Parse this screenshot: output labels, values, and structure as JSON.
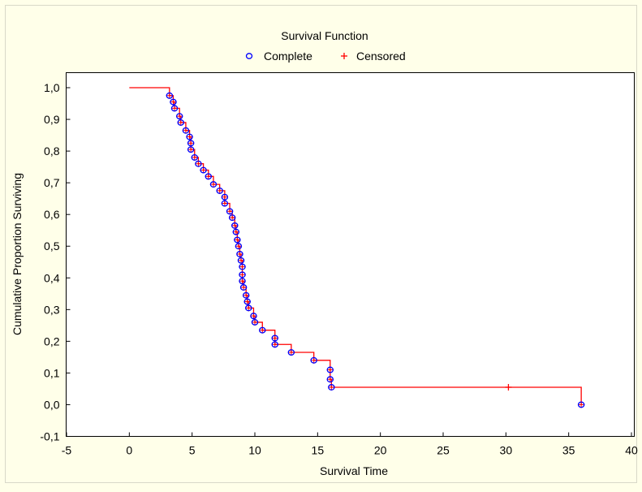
{
  "chart_data": {
    "type": "line",
    "title": "Survival Function",
    "xlabel": "Survival Time",
    "ylabel": "Cumulative Proportion Surviving",
    "xlim": [
      -5,
      40
    ],
    "ylim": [
      -0.1,
      1.05
    ],
    "x_ticks": [
      "-5",
      "0",
      "5",
      "10",
      "15",
      "20",
      "25",
      "30",
      "35",
      "40"
    ],
    "y_ticks": [
      "-0,1",
      "0,0",
      "0,1",
      "0,2",
      "0,3",
      "0,4",
      "0,5",
      "0,6",
      "0,7",
      "0,8",
      "0,9",
      "1,0"
    ],
    "grid": false,
    "legend_position": "top",
    "series": [
      {
        "name": "Complete",
        "marker": "circle",
        "color": "#0000ff",
        "points": [
          [
            3.2,
            0.975
          ],
          [
            3.5,
            0.955
          ],
          [
            3.6,
            0.935
          ],
          [
            4.0,
            0.91
          ],
          [
            4.1,
            0.89
          ],
          [
            4.5,
            0.865
          ],
          [
            4.8,
            0.845
          ],
          [
            4.9,
            0.825
          ],
          [
            4.9,
            0.805
          ],
          [
            5.2,
            0.78
          ],
          [
            5.5,
            0.76
          ],
          [
            5.9,
            0.74
          ],
          [
            6.3,
            0.72
          ],
          [
            6.7,
            0.695
          ],
          [
            7.2,
            0.675
          ],
          [
            7.6,
            0.655
          ],
          [
            7.6,
            0.635
          ],
          [
            8.0,
            0.61
          ],
          [
            8.2,
            0.59
          ],
          [
            8.4,
            0.565
          ],
          [
            8.5,
            0.545
          ],
          [
            8.6,
            0.52
          ],
          [
            8.7,
            0.5
          ],
          [
            8.8,
            0.475
          ],
          [
            8.9,
            0.455
          ],
          [
            9.0,
            0.435
          ],
          [
            9.0,
            0.41
          ],
          [
            9.0,
            0.39
          ],
          [
            9.1,
            0.37
          ],
          [
            9.3,
            0.345
          ],
          [
            9.4,
            0.325
          ],
          [
            9.5,
            0.305
          ],
          [
            9.9,
            0.28
          ],
          [
            10.0,
            0.26
          ],
          [
            10.6,
            0.235
          ],
          [
            11.6,
            0.21
          ],
          [
            11.6,
            0.19
          ],
          [
            12.9,
            0.165
          ],
          [
            14.7,
            0.14
          ],
          [
            16.0,
            0.11
          ],
          [
            16.0,
            0.08
          ],
          [
            16.1,
            0.055
          ],
          [
            36.0,
            0.0
          ]
        ]
      },
      {
        "name": "Censored",
        "marker": "plus",
        "color": "#ff0000",
        "points": [
          [
            30.2,
            0.055
          ]
        ]
      }
    ],
    "step_curve": {
      "color": "#ff0000",
      "start": [
        0,
        1.0
      ],
      "steps": [
        [
          3.2,
          0.975
        ],
        [
          3.5,
          0.955
        ],
        [
          3.6,
          0.935
        ],
        [
          4.0,
          0.91
        ],
        [
          4.1,
          0.89
        ],
        [
          4.5,
          0.865
        ],
        [
          4.8,
          0.845
        ],
        [
          4.9,
          0.805
        ],
        [
          5.2,
          0.78
        ],
        [
          5.5,
          0.76
        ],
        [
          5.9,
          0.74
        ],
        [
          6.3,
          0.72
        ],
        [
          6.7,
          0.695
        ],
        [
          7.2,
          0.675
        ],
        [
          7.6,
          0.635
        ],
        [
          8.0,
          0.61
        ],
        [
          8.2,
          0.59
        ],
        [
          8.4,
          0.565
        ],
        [
          8.5,
          0.545
        ],
        [
          8.6,
          0.52
        ],
        [
          8.7,
          0.5
        ],
        [
          8.8,
          0.475
        ],
        [
          8.9,
          0.455
        ],
        [
          9.0,
          0.39
        ],
        [
          9.1,
          0.37
        ],
        [
          9.3,
          0.345
        ],
        [
          9.4,
          0.325
        ],
        [
          9.5,
          0.305
        ],
        [
          9.9,
          0.28
        ],
        [
          10.0,
          0.26
        ],
        [
          10.6,
          0.235
        ],
        [
          11.6,
          0.19
        ],
        [
          12.9,
          0.165
        ],
        [
          14.7,
          0.14
        ],
        [
          16.0,
          0.08
        ],
        [
          16.1,
          0.055
        ],
        [
          36.0,
          0.0
        ]
      ]
    }
  }
}
